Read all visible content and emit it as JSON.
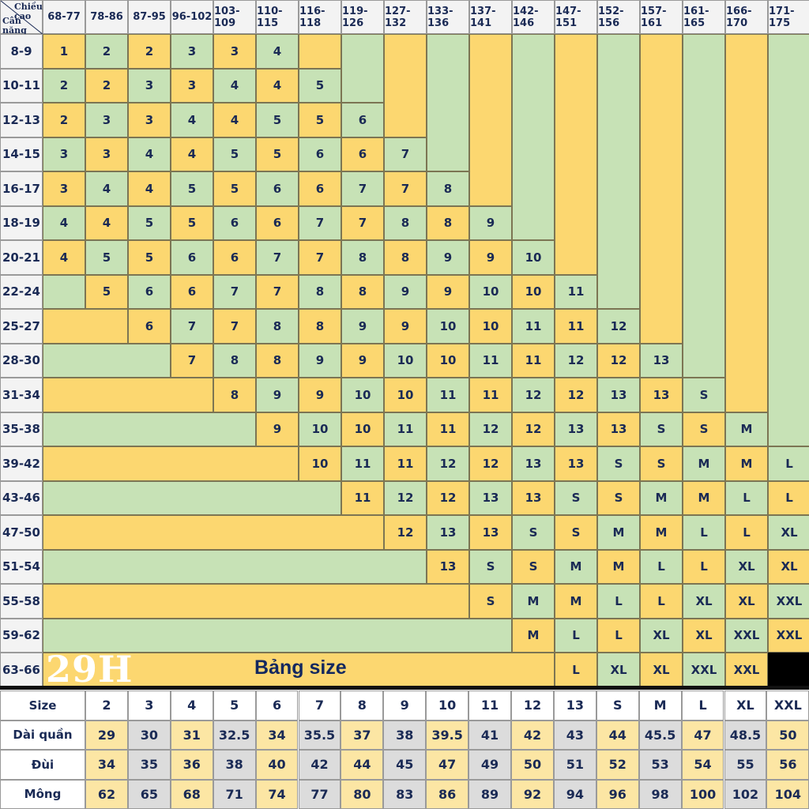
{
  "corner": {
    "top_label": "Chiều cao",
    "bottom_label": "Cân nặng"
  },
  "heights": [
    "68-77",
    "78-86",
    "87-95",
    "96-102",
    "103-109",
    "110-115",
    "116-118",
    "119-126",
    "127-132",
    "133-136",
    "137-141",
    "142-146",
    "147-151",
    "152-156",
    "157-161",
    "161-165",
    "166-170",
    "171-175"
  ],
  "weights": [
    "8-9",
    "10-11",
    "12-13",
    "14-15",
    "16-17",
    "18-19",
    "20-21",
    "22-24",
    "25-27",
    "28-30",
    "31-34",
    "35-38",
    "39-42",
    "43-46",
    "47-50",
    "51-54",
    "55-58",
    "59-62",
    "63-66"
  ],
  "size_grid": [
    [
      "1",
      "2",
      "2",
      "3",
      "3",
      "4"
    ],
    [
      "2",
      "2",
      "3",
      "3",
      "4",
      "4",
      "5"
    ],
    [
      "2",
      "3",
      "3",
      "4",
      "4",
      "5",
      "5",
      "6"
    ],
    [
      "3",
      "3",
      "4",
      "4",
      "5",
      "5",
      "6",
      "6",
      "7"
    ],
    [
      "3",
      "4",
      "4",
      "5",
      "5",
      "6",
      "6",
      "7",
      "7",
      "8"
    ],
    [
      "4",
      "4",
      "5",
      "5",
      "6",
      "6",
      "7",
      "7",
      "8",
      "8",
      "9"
    ],
    [
      "4",
      "5",
      "5",
      "6",
      "6",
      "7",
      "7",
      "8",
      "8",
      "9",
      "9",
      "10"
    ],
    [
      "",
      "5",
      "6",
      "6",
      "7",
      "7",
      "8",
      "8",
      "9",
      "9",
      "10",
      "10",
      "11"
    ],
    [
      "",
      "",
      "6",
      "7",
      "7",
      "8",
      "8",
      "9",
      "9",
      "10",
      "10",
      "11",
      "11",
      "12"
    ],
    [
      "",
      "",
      "",
      "7",
      "8",
      "8",
      "9",
      "9",
      "10",
      "10",
      "11",
      "11",
      "12",
      "12",
      "13"
    ],
    [
      "",
      "",
      "",
      "",
      "8",
      "9",
      "9",
      "10",
      "10",
      "11",
      "11",
      "12",
      "12",
      "13",
      "13",
      "S"
    ],
    [
      "",
      "",
      "",
      "",
      "",
      "9",
      "10",
      "10",
      "11",
      "11",
      "12",
      "12",
      "13",
      "13",
      "S",
      "S",
      "M"
    ],
    [
      "",
      "",
      "",
      "",
      "",
      "",
      "10",
      "11",
      "11",
      "12",
      "12",
      "13",
      "13",
      "S",
      "S",
      "M",
      "M",
      "L"
    ],
    [
      "",
      "",
      "",
      "",
      "",
      "",
      "",
      "11",
      "12",
      "12",
      "13",
      "13",
      "S",
      "S",
      "M",
      "M",
      "L",
      "L"
    ],
    [
      "",
      "",
      "",
      "",
      "",
      "",
      "",
      "",
      "12",
      "13",
      "13",
      "S",
      "S",
      "M",
      "M",
      "L",
      "L",
      "XL"
    ],
    [
      "",
      "",
      "",
      "",
      "",
      "",
      "",
      "",
      "",
      "13",
      "S",
      "S",
      "M",
      "M",
      "L",
      "L",
      "XL",
      "XL"
    ],
    [
      "",
      "",
      "",
      "",
      "",
      "",
      "",
      "",
      "",
      "",
      "S",
      "M",
      "M",
      "L",
      "L",
      "XL",
      "XL",
      "XXL"
    ],
    [
      "",
      "",
      "",
      "",
      "",
      "",
      "",
      "",
      "",
      "",
      "",
      "M",
      "L",
      "L",
      "XL",
      "XL",
      "XXL",
      "XXL"
    ],
    [
      "",
      "",
      "",
      "",
      "",
      "",
      "",
      "",
      "",
      "",
      "",
      "",
      "L",
      "XL",
      "XL",
      "XXL",
      "XXL",
      ""
    ]
  ],
  "title": "Bảng size",
  "logo": "29H",
  "measurements": {
    "headers": {
      "size": "Size",
      "length": "Dài quần",
      "thigh": "Đùi",
      "hip": "Mông"
    },
    "sizes": [
      "2",
      "3",
      "4",
      "5",
      "6",
      "7",
      "8",
      "9",
      "10",
      "11",
      "12",
      "13",
      "S",
      "M",
      "L",
      "XL",
      "XXL"
    ],
    "length": [
      "29",
      "30",
      "31",
      "32.5",
      "34",
      "35.5",
      "37",
      "38",
      "39.5",
      "41",
      "42",
      "43",
      "44",
      "45.5",
      "47",
      "48.5",
      "50"
    ],
    "thigh": [
      "34",
      "35",
      "36",
      "38",
      "40",
      "42",
      "44",
      "45",
      "47",
      "49",
      "50",
      "51",
      "52",
      "53",
      "54",
      "55",
      "56"
    ],
    "hip": [
      "62",
      "65",
      "68",
      "71",
      "74",
      "77",
      "80",
      "83",
      "86",
      "89",
      "92",
      "94",
      "96",
      "98",
      "100",
      "102",
      "104"
    ]
  },
  "colors": {
    "yellow": "#fcd770",
    "green": "#c7e2b6",
    "navy": "#1a2a55"
  }
}
